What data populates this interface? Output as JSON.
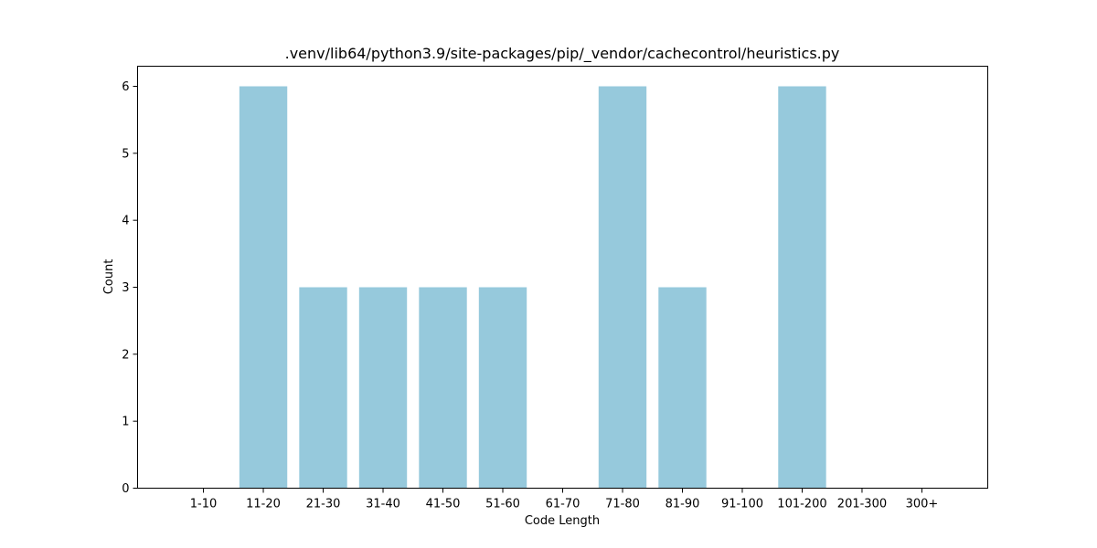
{
  "chart_data": {
    "type": "bar",
    "title": ".venv/lib64/python3.9/site-packages/pip/_vendor/cachecontrol/heuristics.py",
    "xlabel": "Code Length",
    "ylabel": "Count",
    "categories": [
      "1-10",
      "11-20",
      "21-30",
      "31-40",
      "41-50",
      "51-60",
      "61-70",
      "71-80",
      "81-90",
      "91-100",
      "101-200",
      "201-300",
      "300+"
    ],
    "values": [
      0,
      6,
      3,
      3,
      3,
      3,
      0,
      6,
      3,
      0,
      6,
      0,
      0
    ],
    "ylim": [
      0,
      6.3
    ],
    "yticks": [
      0,
      1,
      2,
      3,
      4,
      5,
      6
    ],
    "bar_color": "#96c9dc",
    "grid": false,
    "legend": "none"
  }
}
